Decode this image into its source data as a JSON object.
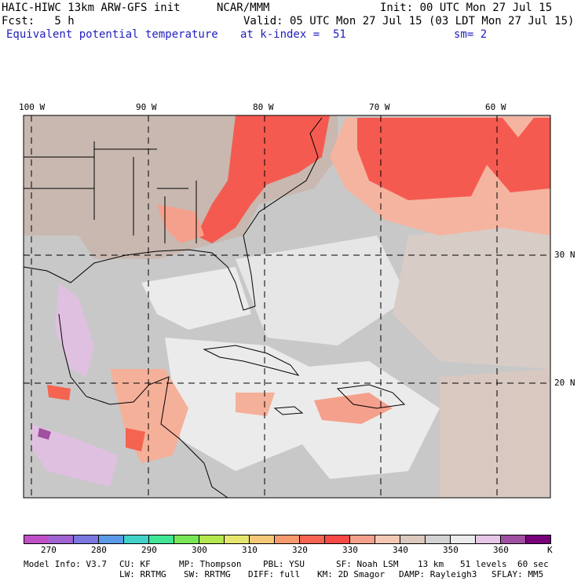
{
  "header": {
    "model": "HAIC-HIWC 13km ARW-GFS init",
    "org": "NCAR/MMM",
    "init": "Init: 00 UTC Mon 27 Jul 15",
    "fcst": "Fcst:   5 h",
    "valid": "Valid: 05 UTC Mon 27 Jul 15 (03 LDT Mon 27 Jul 15)",
    "field": "Equivalent potential temperature",
    "level": "at k-index =  51",
    "smooth": "sm= 2"
  },
  "axes": {
    "lon_labels": [
      "100 W",
      "90 W",
      "80 W",
      "70 W",
      "60 W"
    ],
    "lat_labels": [
      "30 N",
      "20 N"
    ]
  },
  "colorbar": {
    "unit": "K",
    "tick_labels": [
      "270",
      "280",
      "290",
      "300",
      "310",
      "320",
      "330",
      "340",
      "350",
      "360"
    ],
    "colors": [
      "#c050c8",
      "#a064d2",
      "#7a78e0",
      "#5a9ae8",
      "#40d2c8",
      "#40e696",
      "#78e656",
      "#b4e650",
      "#e6e66e",
      "#f5c878",
      "#f59a6e",
      "#f56450",
      "#f54a46",
      "#f5a08c",
      "#f5c8b4",
      "#dcc8be",
      "#d2d2d2",
      "#ebebeb",
      "#e6c8e6",
      "#a050a0",
      "#780078"
    ]
  },
  "footer": {
    "line1": [
      "Model Info: V3.7",
      "CU: KF",
      "MP: Thompson",
      "PBL: YSU",
      "SF: Noah LSM",
      "13 km",
      "51 levels",
      "60 sec"
    ],
    "line2": [
      "LW: RRTMG",
      "SW: RRTMG",
      "DIFF: full",
      "KM: 2D Smagor",
      "DAMP: Rayleigh3",
      "SFLAY: MM5"
    ]
  }
}
